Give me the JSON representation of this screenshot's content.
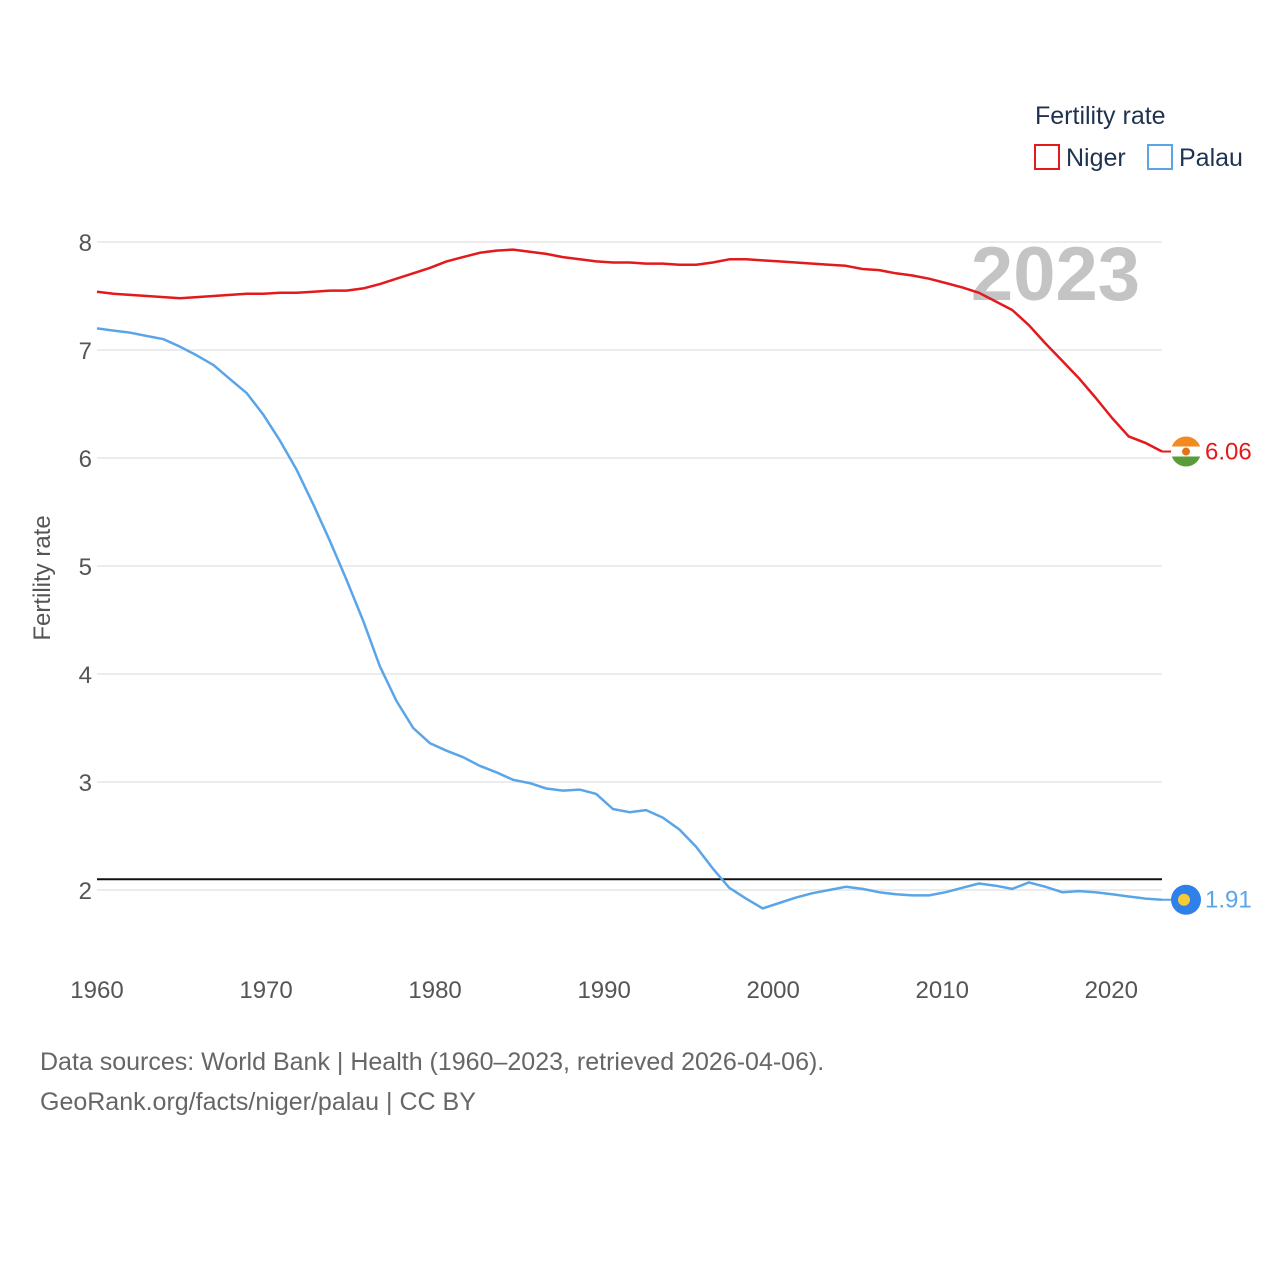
{
  "chart_data": {
    "type": "line",
    "title": "Fertility rate",
    "legend_title": "Fertility rate",
    "ylabel": "Fertility rate",
    "xlabel": "",
    "year_label": "2023",
    "x_start": 1960,
    "x_end": 2023,
    "xlim": [
      1960,
      2023
    ],
    "ylim": [
      1.5,
      8.2
    ],
    "x_ticks": [
      1960,
      1970,
      1980,
      1990,
      2000,
      2010,
      2020
    ],
    "y_ticks": [
      2,
      3,
      4,
      5,
      6,
      7,
      8
    ],
    "reference_line": 2.1,
    "series": [
      {
        "name": "Niger",
        "color": "#e31a1c",
        "end_label": "6.06",
        "flag": "niger-flag",
        "values": [
          7.54,
          7.52,
          7.51,
          7.5,
          7.49,
          7.48,
          7.49,
          7.5,
          7.51,
          7.52,
          7.52,
          7.53,
          7.53,
          7.54,
          7.55,
          7.55,
          7.57,
          7.61,
          7.66,
          7.71,
          7.76,
          7.82,
          7.86,
          7.9,
          7.92,
          7.93,
          7.91,
          7.89,
          7.86,
          7.84,
          7.82,
          7.81,
          7.81,
          7.8,
          7.8,
          7.79,
          7.79,
          7.81,
          7.84,
          7.84,
          7.83,
          7.82,
          7.81,
          7.8,
          7.79,
          7.78,
          7.75,
          7.74,
          7.71,
          7.69,
          7.66,
          7.62,
          7.58,
          7.53,
          7.45,
          7.37,
          7.23,
          7.06,
          6.9,
          6.74,
          6.56,
          6.37,
          6.2,
          6.14,
          6.06
        ]
      },
      {
        "name": "Palau",
        "color": "#5aa5e8",
        "end_label": "1.91",
        "flag": "palau-flag",
        "values": [
          7.2,
          7.18,
          7.16,
          7.13,
          7.1,
          7.03,
          6.95,
          6.86,
          6.73,
          6.6,
          6.4,
          6.16,
          5.89,
          5.57,
          5.23,
          4.87,
          4.49,
          4.07,
          3.75,
          3.5,
          3.36,
          3.29,
          3.23,
          3.15,
          3.09,
          3.02,
          2.99,
          2.94,
          2.92,
          2.93,
          2.89,
          2.75,
          2.72,
          2.74,
          2.67,
          2.56,
          2.4,
          2.2,
          2.02,
          1.92,
          1.83,
          1.88,
          1.93,
          1.97,
          2.0,
          2.03,
          2.01,
          1.98,
          1.96,
          1.95,
          1.95,
          1.98,
          2.02,
          2.06,
          2.04,
          2.01,
          2.07,
          2.03,
          1.98,
          1.99,
          1.98,
          1.96,
          1.94,
          1.92,
          1.91
        ]
      }
    ]
  },
  "footer": {
    "source_line": "Data sources: World Bank | Health (1960–2023, retrieved 2026-04-06).",
    "credit_line": "GeoRank.org/facts/niger/palau | CC BY"
  },
  "colors": {
    "grid": "#e6e6e6",
    "reference": "#111111",
    "niger_flag": [
      "#f28a1f",
      "#ffffff",
      "#5a9b3a",
      "#e2731a"
    ],
    "palau_flag": [
      "#2f80e8",
      "#f5cc36"
    ]
  }
}
